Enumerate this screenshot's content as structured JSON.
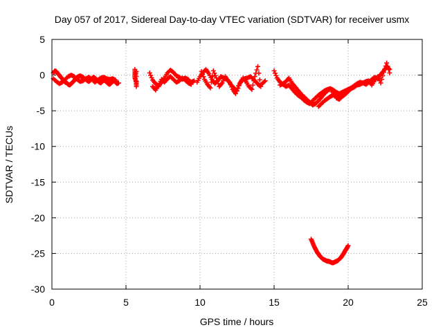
{
  "chart_data": {
    "type": "scatter",
    "title": "Day 057 of 2017, Sidereal Day-to-day VTEC variation (SDTVAR) for receiver usmx",
    "xlabel": "GPS time / hours",
    "ylabel": "SDTVAR / TECUs",
    "xlim": [
      0,
      25
    ],
    "ylim": [
      -30,
      5
    ],
    "xticks": [
      0,
      5,
      10,
      15,
      20,
      25
    ],
    "yticks": [
      5,
      0,
      -5,
      -10,
      -15,
      -20,
      -25,
      -30
    ],
    "grid": true,
    "marker": "plus",
    "color": "#ff0000",
    "series": [
      {
        "name": "SDTVAR",
        "segments": [
          {
            "x": [
              0.1,
              0.2,
              0.3,
              0.4,
              0.5,
              0.6,
              0.7,
              0.8,
              0.9,
              1.0,
              1.1,
              1.2,
              1.3,
              1.4,
              1.5,
              1.6,
              1.7,
              1.8,
              1.9,
              2.0,
              2.1,
              2.2,
              2.3,
              2.4,
              2.5,
              2.6,
              2.7,
              2.8,
              2.9,
              3.0,
              3.1,
              3.2,
              3.3,
              3.4,
              3.5,
              3.6,
              3.7,
              3.8,
              3.9,
              4.0,
              4.1,
              4.2,
              4.3,
              4.4,
              4.5
            ],
            "y": [
              0.3,
              0.6,
              0.5,
              0.2,
              0.0,
              -0.3,
              -0.5,
              -0.8,
              -1.0,
              -1.1,
              -1.3,
              -1.4,
              -1.2,
              -1.0,
              -0.8,
              -0.5,
              -0.3,
              -0.2,
              -0.1,
              -0.2,
              -0.3,
              -0.5,
              -0.6,
              -0.8,
              -0.9,
              -0.7,
              -0.5,
              -0.3,
              -0.4,
              -0.6,
              -0.8,
              -1.0,
              -1.1,
              -0.9,
              -0.7,
              -0.8,
              -1.0,
              -1.2,
              -1.3,
              -1.1,
              -0.9,
              -0.8,
              -1.0,
              -1.2,
              -1.1
            ]
          },
          {
            "x": [
              0.1,
              0.3,
              0.5,
              0.7,
              0.9,
              1.1,
              1.3,
              1.5,
              1.7,
              1.9,
              2.1,
              2.3,
              2.5,
              2.7,
              2.9,
              3.1,
              3.3,
              3.5,
              3.7,
              3.9,
              4.1,
              4.3
            ],
            "y": [
              -0.5,
              -0.9,
              -1.2,
              -1.0,
              -0.6,
              -0.2,
              0.0,
              -0.2,
              -0.6,
              -0.9,
              -0.8,
              -0.5,
              -0.3,
              -0.6,
              -1.0,
              -0.7,
              -0.4,
              -0.3,
              -0.5,
              -0.6,
              -0.5,
              -0.7
            ]
          },
          {
            "x": [
              5.6,
              5.6,
              5.6,
              5.7,
              5.7,
              5.7,
              5.6,
              5.7
            ],
            "y": [
              0.8,
              0.2,
              -0.4,
              -1.0,
              -1.6,
              0.5,
              -0.2,
              -1.2
            ]
          },
          {
            "x": [
              6.6,
              6.8,
              7.0,
              7.2,
              7.4,
              7.6,
              7.8,
              8.0,
              8.2,
              8.4,
              8.6,
              8.8,
              9.0,
              9.2,
              9.4,
              9.6
            ],
            "y": [
              0.3,
              -0.7,
              -1.2,
              -1.6,
              -1.0,
              -0.4,
              0.3,
              0.7,
              0.4,
              -0.1,
              -0.3,
              -0.6,
              -0.4,
              -0.6,
              -1.0,
              -0.8
            ]
          },
          {
            "x": [
              6.8,
              7.0,
              7.2,
              7.4,
              7.6,
              7.8,
              8.0,
              8.2,
              8.4,
              8.6,
              8.8,
              9.0,
              9.2,
              9.4
            ],
            "y": [
              -1.6,
              -2.1,
              -1.4,
              -0.6,
              -1.0,
              -0.5,
              -0.2,
              -0.6,
              -1.0,
              -0.8,
              -0.4,
              -0.7,
              -1.1,
              -1.3
            ]
          },
          {
            "x": [
              9.8,
              10.0,
              10.2,
              10.4,
              10.6,
              10.8,
              11.0,
              11.2,
              11.4,
              11.6,
              11.8,
              12.0,
              12.2,
              12.4,
              12.6,
              12.8,
              13.0,
              13.2,
              13.4,
              13.6,
              13.8,
              14.0,
              14.2,
              14.4
            ],
            "y": [
              -1.0,
              -0.2,
              0.4,
              0.8,
              0.2,
              -0.6,
              -1.2,
              -0.8,
              -0.2,
              -0.4,
              -0.6,
              -1.0,
              -2.0,
              -2.6,
              -1.5,
              -0.8,
              -0.5,
              -0.4,
              -0.2,
              -0.6,
              -1.0,
              -1.5,
              -1.2,
              -0.8
            ]
          },
          {
            "x": [
              10.1,
              10.3,
              10.5,
              10.7,
              10.9,
              11.1,
              11.3,
              11.5,
              11.7,
              11.9,
              12.1,
              12.3,
              12.5,
              12.7,
              12.9,
              13.1,
              13.3,
              13.5,
              13.7,
              13.9,
              14.1
            ],
            "y": [
              0.5,
              -0.6,
              -1.3,
              -1.8,
              0.6,
              -0.4,
              -1.6,
              -1.1,
              -0.2,
              -0.8,
              -1.4,
              -1.8,
              -2.2,
              -1.1,
              -0.4,
              -0.9,
              -1.6,
              -2.0,
              -0.2,
              1.2,
              -1.6
            ]
          },
          {
            "x": [
              15.0,
              15.2,
              15.4,
              15.6,
              15.8,
              16.0,
              16.2,
              16.4,
              16.6,
              16.8,
              17.0,
              17.2,
              17.4,
              17.6,
              17.8,
              18.0,
              18.2,
              18.4,
              18.6,
              18.8,
              19.0,
              19.2,
              19.4,
              19.6,
              19.8,
              20.0,
              20.2,
              20.4,
              20.6,
              20.8,
              21.0,
              21.2,
              21.4,
              21.6,
              21.8,
              22.0,
              22.2,
              22.4,
              22.6,
              22.8
            ],
            "y": [
              0.6,
              -0.4,
              -1.0,
              -1.3,
              -1.6,
              -1.4,
              -1.9,
              -2.4,
              -2.8,
              -3.1,
              -3.5,
              -3.8,
              -4.0,
              -3.6,
              -3.2,
              -2.8,
              -2.5,
              -2.2,
              -2.0,
              -1.9,
              -2.1,
              -2.4,
              -2.6,
              -2.4,
              -2.2,
              -2.0,
              -1.8,
              -1.5,
              -1.2,
              -1.0,
              -1.1,
              -1.3,
              -1.0,
              -0.6,
              -0.3,
              -0.5,
              0.1,
              0.6,
              1.2,
              0.8
            ]
          },
          {
            "x": [
              15.4,
              15.6,
              15.8,
              16.0,
              16.2,
              16.4,
              16.6,
              16.8,
              17.0,
              17.2,
              17.4,
              17.6,
              17.8,
              18.0,
              18.2,
              18.4,
              18.6,
              18.8,
              19.0,
              19.2,
              19.4,
              19.6,
              19.8,
              20.0,
              20.2,
              20.4,
              20.6,
              20.8,
              21.0,
              21.2,
              21.4,
              21.6,
              21.8,
              22.0,
              22.2,
              22.4,
              22.6,
              22.8
            ],
            "y": [
              -1.4,
              -1.2,
              -0.9,
              -0.4,
              -1.1,
              -1.6,
              -2.1,
              -2.6,
              -3.0,
              -3.4,
              -3.8,
              -4.2,
              -4.0,
              -3.6,
              -3.1,
              -2.6,
              -2.2,
              -1.9,
              -2.6,
              -3.2,
              -3.4,
              -3.0,
              -2.7,
              -2.3,
              -1.9,
              -1.7,
              -1.4,
              -1.3,
              -1.1,
              -0.9,
              -0.8,
              -1.4,
              -0.7,
              -0.2,
              -1.1,
              0.4,
              1.7,
              0.3
            ]
          },
          {
            "x": [
              18.0,
              18.2,
              18.4,
              18.6,
              18.8,
              19.0,
              19.2,
              19.4,
              19.6,
              19.8,
              20.0,
              20.2,
              20.4
            ],
            "y": [
              -4.4,
              -4.0,
              -3.6,
              -3.3,
              -3.0,
              -2.8,
              -2.6,
              -2.9,
              -2.7,
              -2.4,
              -2.1,
              -1.8,
              -1.6
            ]
          },
          {
            "x": [
              17.5,
              17.6,
              17.7,
              17.8,
              17.9,
              18.0,
              18.1,
              18.2,
              18.3,
              18.4,
              18.5,
              18.6,
              18.7,
              18.8,
              18.9,
              19.0,
              19.1,
              19.2,
              19.3,
              19.4,
              19.5,
              19.6,
              19.7,
              19.8,
              19.9,
              20.0
            ],
            "y": [
              -23.0,
              -23.5,
              -24.0,
              -24.4,
              -24.8,
              -25.1,
              -25.4,
              -25.6,
              -25.8,
              -25.9,
              -26.0,
              -26.1,
              -26.1,
              -26.2,
              -26.3,
              -26.3,
              -26.2,
              -26.1,
              -26.0,
              -25.8,
              -25.6,
              -25.3,
              -25.0,
              -24.6,
              -24.3,
              -23.9
            ]
          }
        ]
      }
    ]
  }
}
